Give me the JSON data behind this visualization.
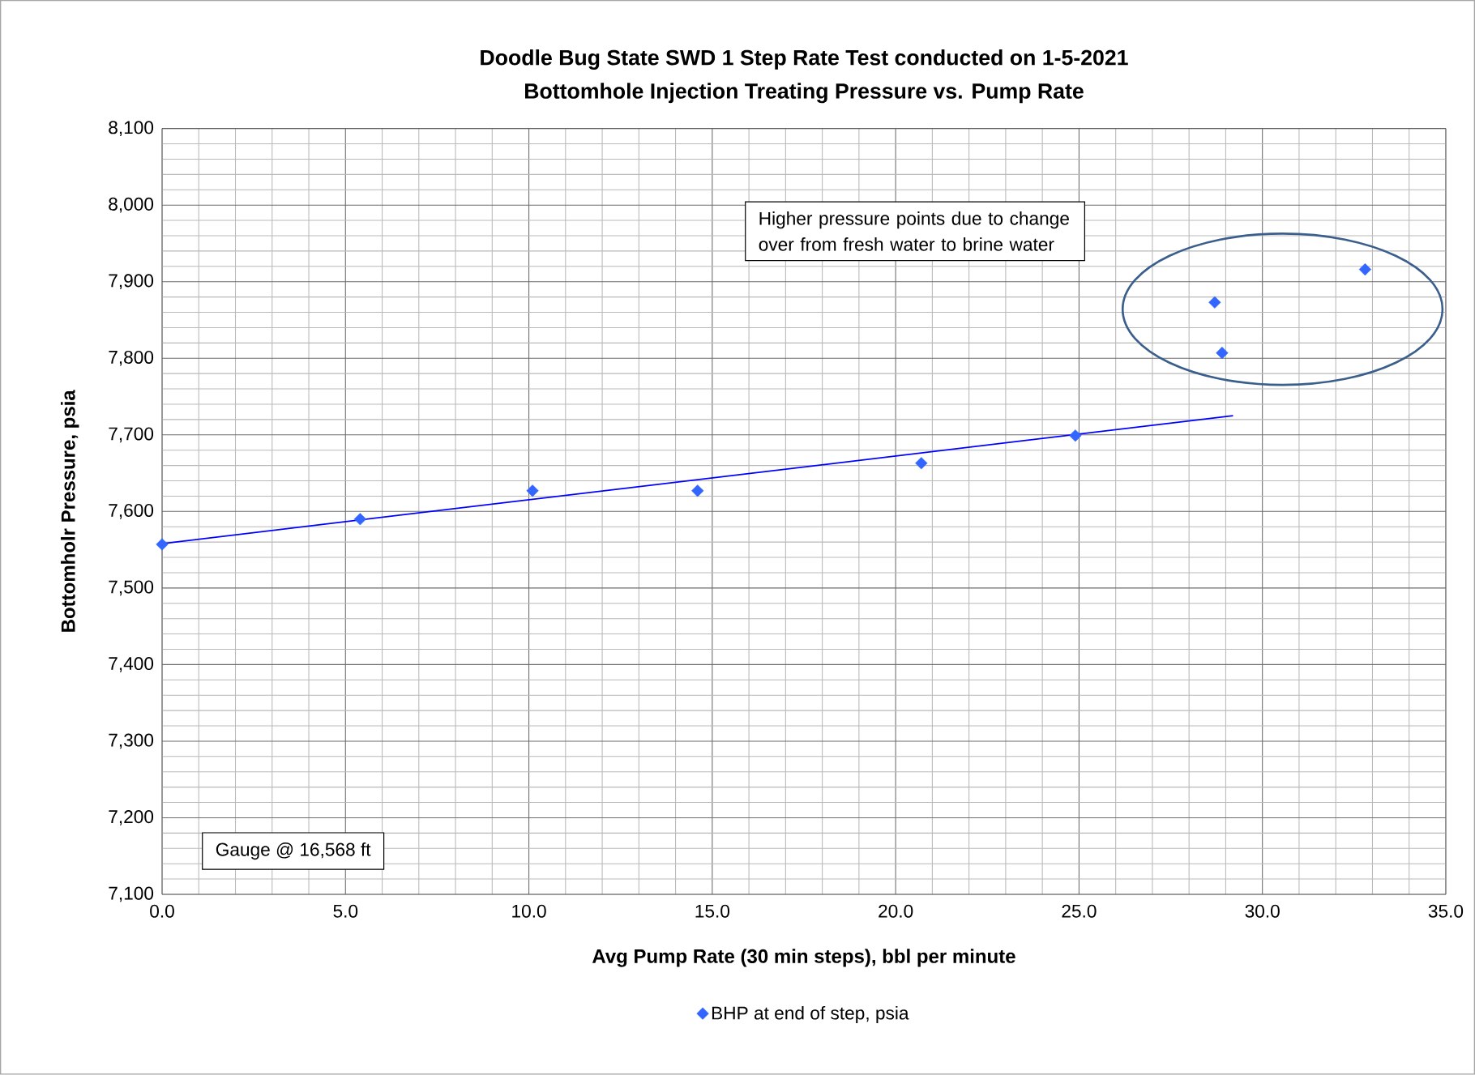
{
  "chart_data": {
    "type": "scatter",
    "title": "Doodle Bug State SWD 1 Step Rate Test conducted on 1-5-2021",
    "subtitle": "Bottomhole Injection Treating Pressure vs. Pump Rate",
    "xlabel": "Avg Pump Rate (30 min steps), bbl per minute",
    "ylabel": "Bottomholr Pressure, psia",
    "annotations": [
      "Higher pressure points due to change over from fresh water to brine water",
      "Gauge @ 16,568 ft"
    ],
    "series": [
      {
        "name": "BHP at end of step, psia",
        "color": "#3366ff",
        "marker": "diamond",
        "x": [
          0.0,
          5.4,
          10.1,
          14.6,
          20.7,
          24.9,
          28.7,
          28.9,
          32.8
        ],
        "values": [
          7557,
          7590,
          7627,
          7627,
          7663,
          7699,
          7873,
          7807,
          7916
        ]
      },
      {
        "type": "line",
        "color": "#0000ff",
        "marker": "none",
        "x": [
          0.0,
          29.2
        ],
        "values": [
          7558,
          7725
        ]
      }
    ],
    "xlim": [
      0,
      35
    ],
    "xticks": [
      {
        "value": 0,
        "label": "0.0"
      },
      {
        "value": 5,
        "label": "5.0"
      },
      {
        "value": 10,
        "label": "10.0"
      },
      {
        "value": 15,
        "label": "15.0"
      },
      {
        "value": 20,
        "label": "20.0"
      },
      {
        "value": 25,
        "label": "25.0"
      },
      {
        "value": 30,
        "label": "30.0"
      },
      {
        "value": 35,
        "label": "35.0"
      }
    ],
    "ylim": [
      7100,
      8100
    ],
    "yticks": [
      {
        "value": 7100,
        "label": "7,100"
      },
      {
        "value": 7200,
        "label": "7,200"
      },
      {
        "value": 7300,
        "label": "7,300"
      },
      {
        "value": 7400,
        "label": "7,400"
      },
      {
        "value": 7500,
        "label": "7,500"
      },
      {
        "value": 7600,
        "label": "7,600"
      },
      {
        "value": 7700,
        "label": "7,700"
      },
      {
        "value": 7800,
        "label": "7,800"
      },
      {
        "value": 7900,
        "label": "7,900"
      },
      {
        "value": 8000,
        "label": "8,000"
      },
      {
        "value": 8100,
        "label": "8,100"
      }
    ],
    "grid": true,
    "legend": "bottom"
  }
}
